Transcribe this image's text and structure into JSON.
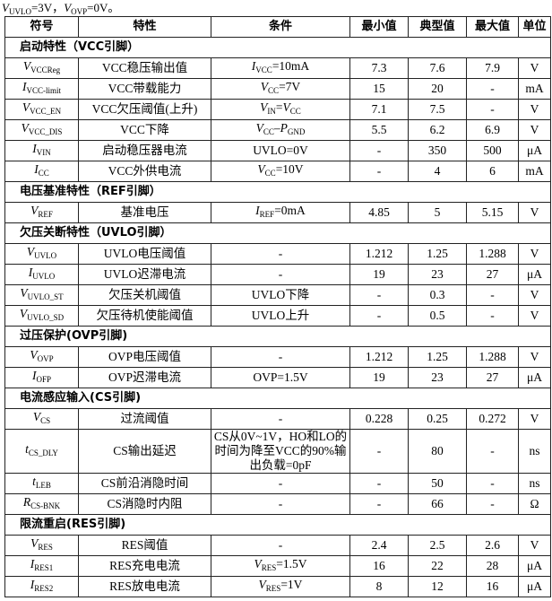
{
  "note": [
    [
      "V",
      "i"
    ],
    [
      "UVLO",
      "sub"
    ],
    [
      "=3V，",
      ""
    ],
    [
      "V",
      "i"
    ],
    [
      "OVP",
      "sub"
    ],
    [
      "=0V。",
      ""
    ]
  ],
  "headers": [
    "符号",
    "特性",
    "条件",
    "最小值",
    "典型值",
    "最大值",
    "单位"
  ],
  "rows": [
    {
      "section": "启动特性（VCC引脚）"
    },
    {
      "sym": [
        [
          "V",
          "i"
        ],
        [
          "VCCReg",
          "sub"
        ]
      ],
      "char": "VCC稳压输出值",
      "cond": [
        [
          "I",
          "i"
        ],
        [
          "VCC",
          "sub"
        ],
        [
          "=10mA",
          ""
        ]
      ],
      "min": "7.3",
      "typ": "7.6",
      "max": "7.9",
      "unit": "V"
    },
    {
      "sym": [
        [
          "I",
          "i"
        ],
        [
          "VCC-limit",
          "sub"
        ]
      ],
      "char": "VCC带载能力",
      "cond": [
        [
          "V",
          "i"
        ],
        [
          "CC",
          "sub"
        ],
        [
          "=7V",
          ""
        ]
      ],
      "min": "15",
      "typ": "20",
      "max": "-",
      "unit": "mA"
    },
    {
      "sym": [
        [
          "V",
          "i"
        ],
        [
          "VCC_EN",
          "sub"
        ]
      ],
      "char": "VCC欠压阈值(上升)",
      "cond": [
        [
          "V",
          "i"
        ],
        [
          "IN",
          "sub"
        ],
        [
          "=",
          ""
        ],
        [
          "V",
          "i"
        ],
        [
          "CC",
          "sub"
        ]
      ],
      "min": "7.1",
      "typ": "7.5",
      "max": "-",
      "unit": "V"
    },
    {
      "sym": [
        [
          "V",
          "i"
        ],
        [
          "VCC_DIS",
          "sub"
        ]
      ],
      "char": "VCC下降",
      "cond": [
        [
          "V",
          "i"
        ],
        [
          "CC",
          "sub"
        ],
        [
          "–",
          ""
        ],
        [
          "P",
          "i"
        ],
        [
          "GND",
          "sub"
        ]
      ],
      "min": "5.5",
      "typ": "6.2",
      "max": "6.9",
      "unit": "V"
    },
    {
      "sym": [
        [
          "I",
          "i"
        ],
        [
          "VIN",
          "sub"
        ]
      ],
      "char": "启动稳压器电流",
      "cond": [
        [
          "UVLO=0V",
          ""
        ]
      ],
      "min": "-",
      "typ": "350",
      "max": "500",
      "unit": "μA"
    },
    {
      "sym": [
        [
          "I",
          "i"
        ],
        [
          "CC",
          "sub"
        ]
      ],
      "char": "VCC外供电流",
      "cond": [
        [
          "V",
          "i"
        ],
        [
          "CC",
          "sub"
        ],
        [
          "=10V",
          ""
        ]
      ],
      "min": "-",
      "typ": "4",
      "max": "6",
      "unit": "mA"
    },
    {
      "section": "电压基准特性（REF引脚）"
    },
    {
      "sym": [
        [
          "V",
          "i"
        ],
        [
          "REF",
          "sub"
        ]
      ],
      "char": "基准电压",
      "cond": [
        [
          "I",
          "i"
        ],
        [
          "REF",
          "sub"
        ],
        [
          "=0mA",
          ""
        ]
      ],
      "min": "4.85",
      "typ": "5",
      "max": "5.15",
      "unit": "V"
    },
    {
      "section": "欠压关断特性（UVLO引脚）"
    },
    {
      "sym": [
        [
          "V",
          "i"
        ],
        [
          "UVLO",
          "sub"
        ]
      ],
      "char": "UVLO电压阈值",
      "cond": [
        [
          "-",
          ""
        ]
      ],
      "min": "1.212",
      "typ": "1.25",
      "max": "1.288",
      "unit": "V"
    },
    {
      "sym": [
        [
          "I",
          "i"
        ],
        [
          "UVLO",
          "sub"
        ]
      ],
      "char": "UVLO迟滞电流",
      "cond": [
        [
          "-",
          ""
        ]
      ],
      "min": "19",
      "typ": "23",
      "max": "27",
      "unit": "μA"
    },
    {
      "sym": [
        [
          "V",
          "i"
        ],
        [
          "UVLO_ST",
          "sub"
        ]
      ],
      "char": "欠压关机阈值",
      "cond": [
        [
          "UVLO下降",
          ""
        ]
      ],
      "min": "-",
      "typ": "0.3",
      "max": "-",
      "unit": "V"
    },
    {
      "sym": [
        [
          "V",
          "i"
        ],
        [
          "UVLO_SD",
          "sub"
        ]
      ],
      "char": "欠压待机使能阈值",
      "cond": [
        [
          "UVLO上升",
          ""
        ]
      ],
      "min": "-",
      "typ": "0.5",
      "max": "-",
      "unit": "V"
    },
    {
      "section": "过压保护(OVP引脚)"
    },
    {
      "sym": [
        [
          "V",
          "i"
        ],
        [
          "OVP",
          "sub"
        ]
      ],
      "char": "OVP电压阈值",
      "cond": [
        [
          "-",
          ""
        ]
      ],
      "min": "1.212",
      "typ": "1.25",
      "max": "1.288",
      "unit": "V"
    },
    {
      "sym": [
        [
          "I",
          "i"
        ],
        [
          "OFP",
          "sub"
        ]
      ],
      "char": "OVP迟滞电流",
      "cond": [
        [
          "OVP=1.5V",
          ""
        ]
      ],
      "min": "19",
      "typ": "23",
      "max": "27",
      "unit": "μA"
    },
    {
      "section": "电流感应输入(CS引脚)"
    },
    {
      "sym": [
        [
          "V",
          "i"
        ],
        [
          "CS",
          "sub"
        ]
      ],
      "char": "过流阈值",
      "cond": [
        [
          "-",
          ""
        ]
      ],
      "min": "0.228",
      "typ": "0.25",
      "max": "0.272",
      "unit": "V"
    },
    {
      "sym": [
        [
          "t",
          "i"
        ],
        [
          "CS_DLY",
          "sub"
        ]
      ],
      "char": "CS输出延迟",
      "cond": [
        [
          "CS从0V~1V，HO和LO的时间为降至VCC的90%输出负载=0pF",
          ""
        ]
      ],
      "min": "-",
      "typ": "80",
      "max": "-",
      "unit": "ns"
    },
    {
      "sym": [
        [
          "t",
          "i"
        ],
        [
          "LEB",
          "sub"
        ]
      ],
      "char": "CS前沿消隐时间",
      "cond": [
        [
          "-",
          ""
        ]
      ],
      "min": "-",
      "typ": "50",
      "max": "-",
      "unit": "ns"
    },
    {
      "sym": [
        [
          "R",
          "i"
        ],
        [
          "CS-BNK",
          "sub"
        ]
      ],
      "char": "CS消隐时内阻",
      "cond": [
        [
          "-",
          ""
        ]
      ],
      "min": "-",
      "typ": "66",
      "max": "-",
      "unit": "Ω"
    },
    {
      "section": "限流重启(RES引脚)"
    },
    {
      "sym": [
        [
          "V",
          "i"
        ],
        [
          "RES",
          "sub"
        ]
      ],
      "char": "RES阈值",
      "cond": [
        [
          "-",
          ""
        ]
      ],
      "min": "2.4",
      "typ": "2.5",
      "max": "2.6",
      "unit": "V"
    },
    {
      "sym": [
        [
          "I",
          "i"
        ],
        [
          "RES1",
          "sub"
        ]
      ],
      "char": "RES充电电流",
      "cond": [
        [
          "V",
          "i"
        ],
        [
          "RES",
          "sub"
        ],
        [
          "=1.5V",
          ""
        ]
      ],
      "min": "16",
      "typ": "22",
      "max": "28",
      "unit": "μA"
    },
    {
      "sym": [
        [
          "I",
          "i"
        ],
        [
          "RES2",
          "sub"
        ]
      ],
      "char": "RES放电电流",
      "cond": [
        [
          "V",
          "i"
        ],
        [
          "RES",
          "sub"
        ],
        [
          "=1V",
          ""
        ]
      ],
      "min": "8",
      "typ": "12",
      "max": "16",
      "unit": "μA"
    }
  ]
}
